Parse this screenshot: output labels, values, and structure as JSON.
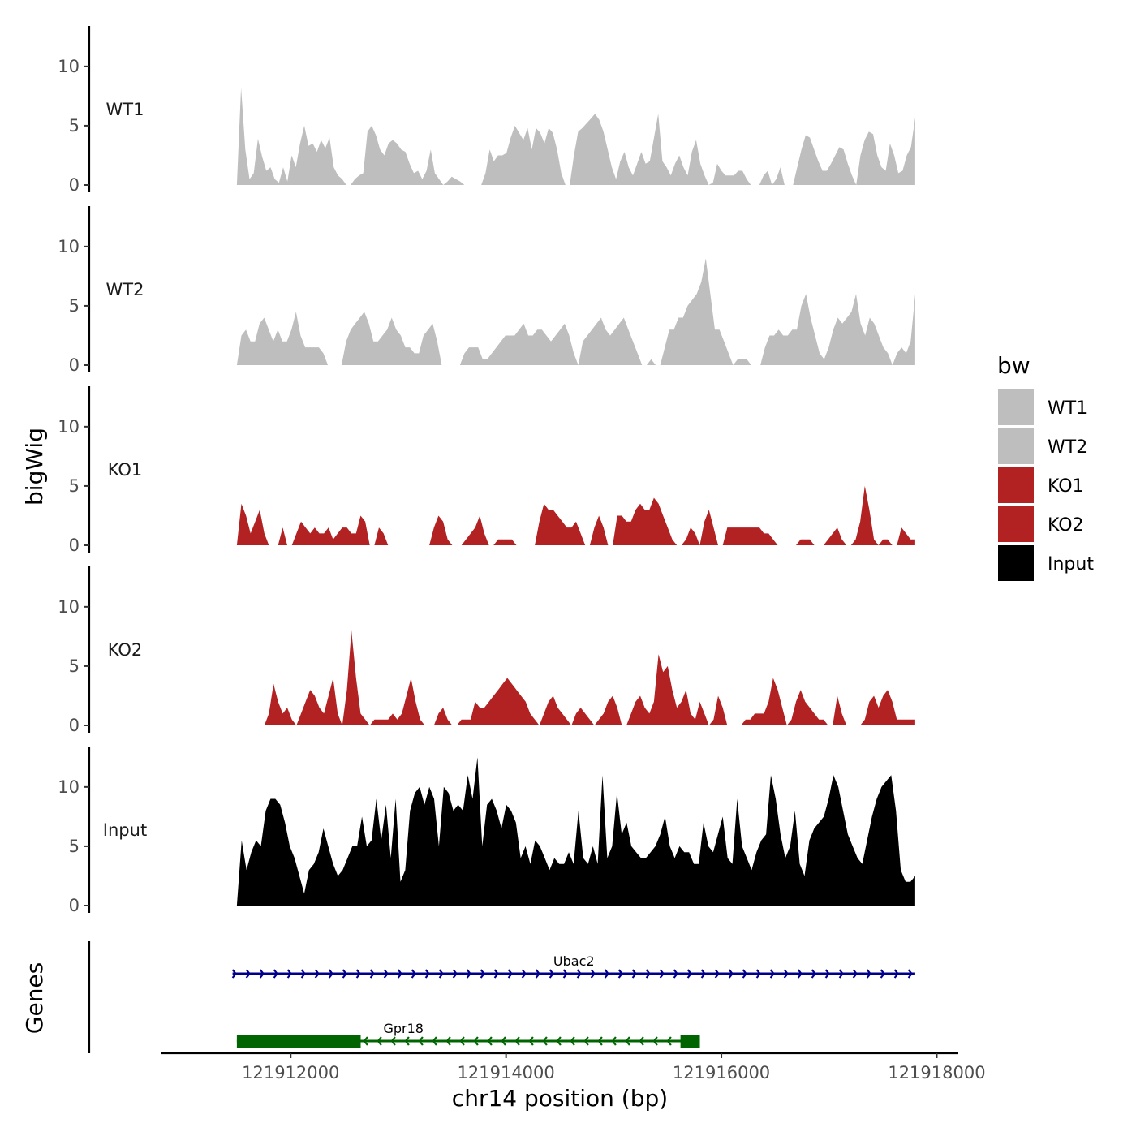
{
  "chart_data": {
    "type": "area",
    "ylabel": "bigWig",
    "xlabel": "chr14 position (bp)",
    "genes_label": "Genes",
    "x_range": [
      121911500,
      121917800
    ],
    "xlim": [
      121910800,
      121918200
    ],
    "x_ticks": [
      121912000,
      121914000,
      121916000,
      121918000
    ],
    "x_tick_labels": [
      "121912000",
      "121914000",
      "121916000",
      "121918000"
    ],
    "ylim": [
      0,
      13
    ],
    "y_ticks": [
      0,
      5,
      10
    ],
    "y_tick_labels": [
      "0",
      "5",
      "10"
    ],
    "legend": {
      "title": "bw",
      "entries": [
        {
          "label": "WT1",
          "color": "#bebebe"
        },
        {
          "label": "WT2",
          "color": "#bebebe"
        },
        {
          "label": "KO1",
          "color": "#b22222"
        },
        {
          "label": "KO2",
          "color": "#b22222"
        },
        {
          "label": "Input",
          "color": "#000000"
        }
      ]
    },
    "tracks": [
      {
        "name": "WT1",
        "color": "#bebebe",
        "values": [
          0,
          8.2,
          3,
          0.5,
          1,
          3.9,
          2.4,
          1.2,
          1.5,
          0.5,
          0.2,
          1.5,
          0.3,
          2.5,
          1.5,
          3.5,
          5.0,
          3.3,
          3.5,
          2.8,
          3.8,
          3.1,
          4.0,
          1.5,
          0.8,
          0.5,
          0,
          0,
          0.5,
          0.8,
          1.0,
          4.5,
          5.0,
          4.2,
          3.0,
          2.5,
          3.5,
          3.8,
          3.5,
          3.0,
          2.8,
          1.8,
          1.0,
          1.2,
          0.5,
          1.2,
          3.0,
          1.0,
          0.5,
          0,
          0.3,
          0.7,
          0.5,
          0.3,
          0,
          0,
          0,
          0,
          0,
          1.0,
          3.0,
          2.0,
          2.5,
          2.5,
          2.7,
          4.0,
          5.0,
          4.4,
          3.8,
          4.8,
          3.0,
          4.8,
          4.4,
          3.5,
          4.8,
          4.4,
          3.0,
          1.0,
          0,
          0,
          2.5,
          4.5,
          4.8,
          5.2,
          5.6,
          6.0,
          5.5,
          4.5,
          3.0,
          1.5,
          0.5,
          2.0,
          2.8,
          1.5,
          0.8,
          1.8,
          2.8,
          1.8,
          2.0,
          4.0,
          6.0,
          2.0,
          1.5,
          0.8,
          1.8,
          2.5,
          1.5,
          0.8,
          2.8,
          3.8,
          1.8,
          0.8,
          0,
          0.2,
          1.8,
          1.2,
          0.8,
          0.8,
          0.8,
          1.2,
          1.2,
          0.5,
          0,
          0,
          0,
          0.8,
          1.2,
          0,
          0.5,
          1.5,
          0,
          0,
          0,
          1.5,
          3.0,
          4.2,
          4.0,
          3.0,
          2.0,
          1.2,
          1.2,
          1.8,
          2.5,
          3.2,
          3.0,
          1.8,
          0.8,
          0,
          2.5,
          3.8,
          4.5,
          4.3,
          2.5,
          1.5,
          1.2,
          3.5,
          2.5,
          1.0,
          1.2,
          2.5,
          3.2,
          5.7
        ]
      },
      {
        "name": "WT2",
        "color": "#bebebe",
        "values": [
          0,
          2.5,
          3.0,
          2.0,
          2.0,
          3.5,
          4.0,
          3.0,
          2.0,
          3.0,
          2.0,
          2.0,
          3.0,
          4.5,
          2.5,
          1.5,
          1.5,
          1.5,
          1.5,
          1.0,
          0,
          0,
          0,
          0,
          2.0,
          3.0,
          3.5,
          4.0,
          4.5,
          3.5,
          2.0,
          2.0,
          2.5,
          3.0,
          4.0,
          3.0,
          2.5,
          1.5,
          1.5,
          1.0,
          1.0,
          2.5,
          3.0,
          3.5,
          2.0,
          0,
          0,
          0,
          0,
          0,
          1.0,
          1.5,
          1.5,
          1.5,
          0.5,
          0.5,
          1.0,
          1.5,
          2.0,
          2.5,
          2.5,
          2.5,
          3.0,
          3.5,
          2.5,
          2.5,
          3.0,
          3.0,
          2.5,
          2.0,
          2.5,
          3.0,
          3.5,
          2.5,
          1.0,
          0,
          2.0,
          2.5,
          3.0,
          3.5,
          4.0,
          3.0,
          2.5,
          3.0,
          3.5,
          4.0,
          3.0,
          2.0,
          1.0,
          0,
          0,
          0.5,
          0,
          0,
          1.5,
          3.0,
          3.0,
          4.0,
          4.0,
          5.0,
          5.5,
          6.0,
          7.0,
          9.0,
          6.0,
          3.0,
          3.0,
          2.0,
          1.0,
          0,
          0.5,
          0.5,
          0.5,
          0,
          0,
          0,
          1.5,
          2.5,
          2.5,
          3.0,
          2.5,
          2.5,
          3.0,
          3.0,
          5.0,
          6.0,
          4.0,
          2.5,
          1.0,
          0.5,
          1.5,
          3.0,
          4.0,
          3.5,
          4.0,
          4.5,
          6.0,
          3.5,
          2.5,
          4.0,
          3.5,
          2.5,
          1.5,
          1.0,
          0,
          1.0,
          1.5,
          1.0,
          2.0,
          6.0
        ]
      },
      {
        "name": "KO1",
        "color": "#b22222",
        "values": [
          0,
          3.5,
          2.5,
          1.0,
          2.0,
          3.0,
          1.0,
          0,
          0,
          0,
          1.5,
          0,
          0,
          1.0,
          2.0,
          1.5,
          1.0,
          1.5,
          1.0,
          1.0,
          1.5,
          0.5,
          1.0,
          1.5,
          1.5,
          1.0,
          1.0,
          2.5,
          2.0,
          0,
          0,
          1.5,
          1.0,
          0,
          0,
          0,
          0,
          0,
          0,
          0,
          0,
          0,
          0,
          1.5,
          2.5,
          2.0,
          0.5,
          0,
          0,
          0,
          0.5,
          1.0,
          1.5,
          2.5,
          1.0,
          0,
          0,
          0.5,
          0.5,
          0.5,
          0.5,
          0,
          0,
          0,
          0,
          0,
          2.0,
          3.5,
          3.0,
          3.0,
          2.5,
          2.0,
          1.5,
          1.5,
          2.0,
          1.0,
          0,
          0,
          1.5,
          2.5,
          1.5,
          0,
          0,
          2.5,
          2.5,
          2.0,
          2.0,
          3.0,
          3.5,
          3.0,
          3.0,
          4.0,
          3.5,
          2.5,
          1.5,
          0.5,
          0,
          0,
          0.5,
          1.5,
          1.0,
          0,
          2.0,
          3.0,
          1.5,
          0,
          0,
          1.5,
          1.5,
          1.5,
          1.5,
          1.5,
          1.5,
          1.5,
          1.5,
          1.0,
          1.0,
          0.5,
          0,
          0,
          0,
          0,
          0,
          0.5,
          0.5,
          0.5,
          0,
          0,
          0,
          0.5,
          1.0,
          1.5,
          0.5,
          0,
          0,
          0.5,
          2.0,
          5.0,
          3.0,
          0.5,
          0,
          0.5,
          0.5,
          0,
          0,
          1.5,
          1.0,
          0.5,
          0.5
        ]
      },
      {
        "name": "KO2",
        "color": "#b22222",
        "values": [
          0,
          0,
          0,
          0,
          0,
          0,
          0,
          1.0,
          3.5,
          2.0,
          1.0,
          1.5,
          0.5,
          0,
          1.0,
          2.0,
          3.0,
          2.5,
          1.5,
          1.0,
          2.5,
          4.0,
          1.0,
          0,
          3.0,
          8.0,
          4.0,
          1.0,
          0.5,
          0,
          0.5,
          0.5,
          0.5,
          0.5,
          1.0,
          0.5,
          1.0,
          2.5,
          4.0,
          2.0,
          0.5,
          0,
          0,
          0,
          1.0,
          1.5,
          0.5,
          0,
          0,
          0.5,
          0.5,
          0.5,
          2.0,
          1.5,
          1.5,
          2.0,
          2.5,
          3.0,
          3.5,
          4.0,
          3.5,
          3.0,
          2.5,
          2.0,
          1.0,
          0.5,
          0,
          1.0,
          2.0,
          2.5,
          1.5,
          1.0,
          0.5,
          0,
          1.0,
          1.5,
          1.0,
          0.5,
          0,
          0.5,
          1.0,
          2.0,
          2.5,
          1.5,
          0,
          0,
          1.0,
          2.0,
          2.5,
          1.5,
          1.0,
          2.0,
          6.0,
          4.5,
          5.0,
          3.0,
          1.5,
          2.0,
          3.0,
          1.0,
          0.5,
          2.0,
          1.0,
          0,
          0.5,
          2.5,
          1.5,
          0,
          0,
          0,
          0,
          0.5,
          0.5,
          1.0,
          1.0,
          1.0,
          2.0,
          4.0,
          3.0,
          1.5,
          0,
          0.5,
          2.0,
          3.0,
          2.0,
          1.5,
          1.0,
          0.5,
          0.5,
          0,
          0,
          2.5,
          1.0,
          0,
          0,
          0,
          0,
          0.5,
          2.0,
          2.5,
          1.5,
          2.5,
          3.0,
          2.0,
          0.5,
          0.5,
          0.5,
          0.5,
          0.5
        ]
      },
      {
        "name": "Input",
        "color": "#000000",
        "values": [
          0,
          5.5,
          3.0,
          4.5,
          5.5,
          5.0,
          8.0,
          9.0,
          9.0,
          8.5,
          7.0,
          5.0,
          4.0,
          2.5,
          1.0,
          3.0,
          3.5,
          4.5,
          6.5,
          5.0,
          3.5,
          2.5,
          3.0,
          4.0,
          5.0,
          5.0,
          7.5,
          5.0,
          5.5,
          9.0,
          5.5,
          8.5,
          4.0,
          9.0,
          2.0,
          3.0,
          8.0,
          9.5,
          10.0,
          8.5,
          10.0,
          9.0,
          5.0,
          10.0,
          9.5,
          8.0,
          8.5,
          8.0,
          11.0,
          9.0,
          12.5,
          5.0,
          8.5,
          9.0,
          8.0,
          6.5,
          8.5,
          8.0,
          7.0,
          4.0,
          5.0,
          3.5,
          5.5,
          5.0,
          4.0,
          3.0,
          4.0,
          3.5,
          3.5,
          4.5,
          3.5,
          8.0,
          4.0,
          3.5,
          5.0,
          3.5,
          11.0,
          4.0,
          5.0,
          9.5,
          6.0,
          7.0,
          5.0,
          4.5,
          4.0,
          4.0,
          4.5,
          5.0,
          6.0,
          7.5,
          5.0,
          4.0,
          5.0,
          4.5,
          4.5,
          3.5,
          3.5,
          7.0,
          5.0,
          4.5,
          6.0,
          7.5,
          4.0,
          3.5,
          9.0,
          5.0,
          4.0,
          3.0,
          4.5,
          5.5,
          6.0,
          11.0,
          9.0,
          6.0,
          4.0,
          5.0,
          8.0,
          3.5,
          2.5,
          5.5,
          6.5,
          7.0,
          7.5,
          9.0,
          11.0,
          10.0,
          8.0,
          6.0,
          5.0,
          4.0,
          3.5,
          5.5,
          7.5,
          9.0,
          10.0,
          10.5,
          11.0,
          8.0,
          3.0,
          2.0,
          2.0,
          2.5
        ]
      }
    ],
    "genes": [
      {
        "name": "Ubac2",
        "start": 121911460,
        "end": 121917800,
        "strand": "+",
        "color": "#00008b",
        "exons": []
      },
      {
        "name": "Gpr18",
        "start": 121911500,
        "end": 121915800,
        "strand": "-",
        "color": "#006400",
        "exons": [
          [
            121911500,
            121912650
          ],
          [
            121915620,
            121915800
          ]
        ]
      }
    ]
  }
}
